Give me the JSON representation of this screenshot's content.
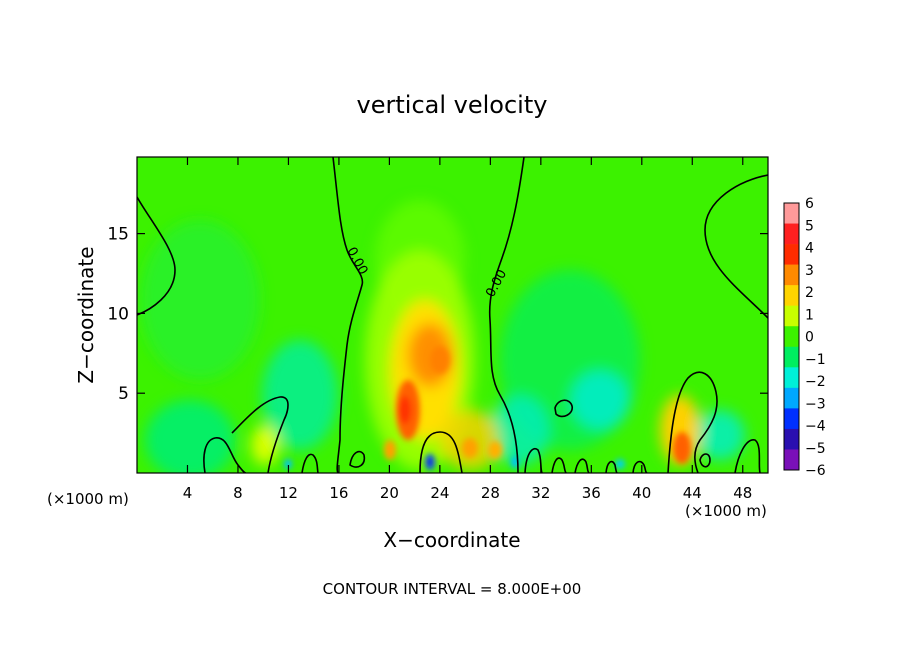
{
  "chart_data": {
    "type": "heatmap",
    "title": "vertical velocity",
    "xlabel": "X−coordinate",
    "ylabel": "Z−coordinate",
    "x_unit_left": "(×1000 m)",
    "x_unit_right": "(×1000 m)",
    "xlim": [
      0,
      50
    ],
    "ylim": [
      0,
      19.8
    ],
    "x_ticks": [
      4,
      8,
      12,
      16,
      20,
      24,
      28,
      32,
      36,
      40,
      44,
      48
    ],
    "y_ticks": [
      5,
      10,
      15
    ],
    "contour_label": "0.00",
    "colorbar": {
      "ticks": [
        "6",
        "5",
        "4",
        "3",
        "2",
        "1",
        "0",
        "−1",
        "−2",
        "−3",
        "−4",
        "−5",
        "−6"
      ],
      "levels": [
        6,
        5,
        4,
        3,
        2,
        1,
        0,
        -1,
        -2,
        -3,
        -4,
        -5,
        -6
      ],
      "colors": [
        "#ff9a9a",
        "#ff2020",
        "#ff2c00",
        "#ff8a00",
        "#ffd400",
        "#c8ff00",
        "#3cf200",
        "#00ee60",
        "#00f0d8",
        "#00a8ff",
        "#0030ff",
        "#2a10b0",
        "#7a10b8"
      ]
    },
    "annotation": "CONTOUR INTERVAL = 8.000E+00",
    "background_color": "#3cf200"
  }
}
